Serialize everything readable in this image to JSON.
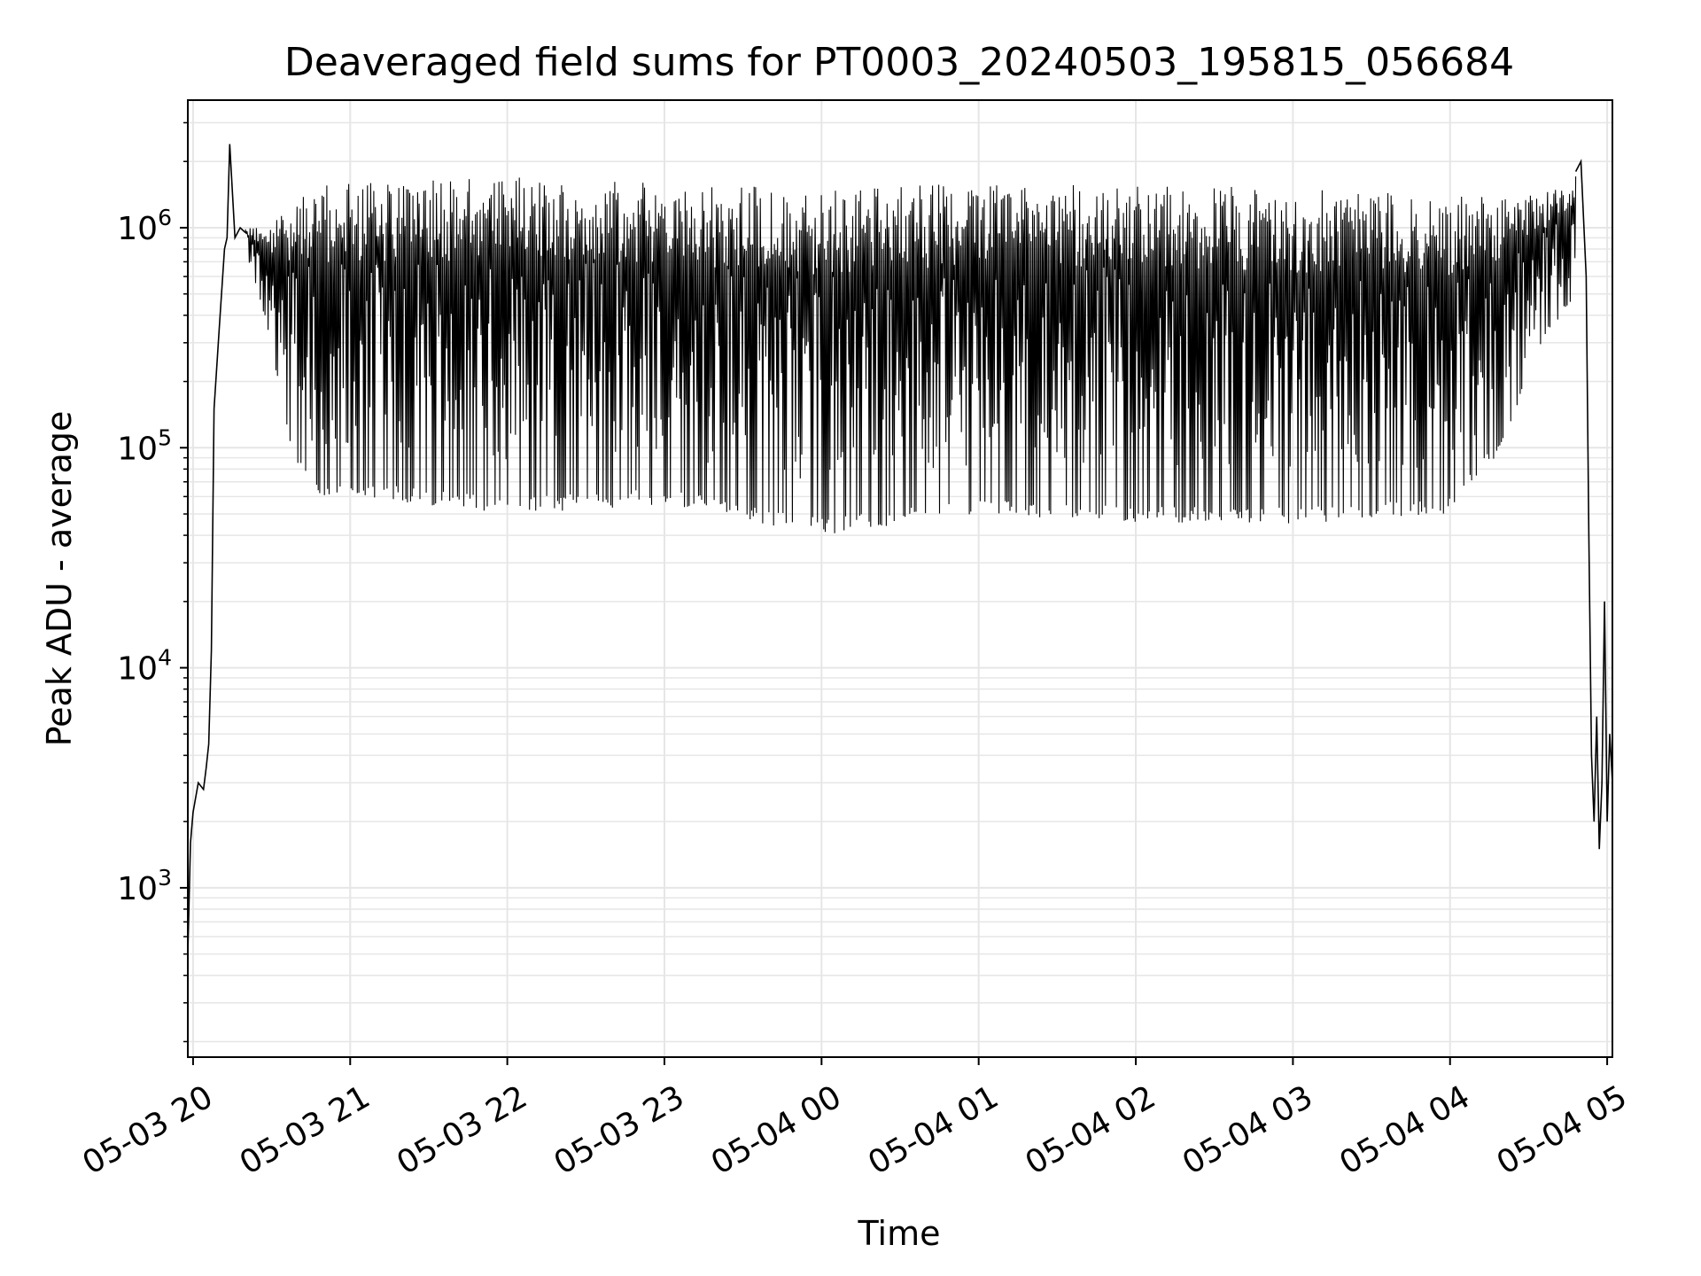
{
  "chart_data": {
    "type": "line",
    "title": "Deaveraged field sums for PT0003_20240503_195815_056684",
    "xlabel": "Time",
    "ylabel": "Peak ADU - average",
    "y_scale": "log",
    "grid": true,
    "grid_minor": true,
    "legend": "none",
    "line_color": "#000000",
    "grid_color": "#e6e6e6",
    "xlim": [
      "2024-05-03T19:58",
      "2024-05-04T05:02"
    ],
    "ylim": [
      170,
      3800000
    ],
    "x_ticks": [
      {
        "value": "2024-05-03T20:00",
        "label": "05-03 20"
      },
      {
        "value": "2024-05-03T21:00",
        "label": "05-03 21"
      },
      {
        "value": "2024-05-03T22:00",
        "label": "05-03 22"
      },
      {
        "value": "2024-05-03T23:00",
        "label": "05-03 23"
      },
      {
        "value": "2024-05-04T00:00",
        "label": "05-04 00"
      },
      {
        "value": "2024-05-04T01:00",
        "label": "05-04 01"
      },
      {
        "value": "2024-05-04T02:00",
        "label": "05-04 02"
      },
      {
        "value": "2024-05-04T03:00",
        "label": "05-04 03"
      },
      {
        "value": "2024-05-04T04:00",
        "label": "05-04 04"
      },
      {
        "value": "2024-05-04T05:00",
        "label": "05-04 05"
      }
    ],
    "y_ticks": [
      {
        "value": 1000,
        "base": "10",
        "exp": "3"
      },
      {
        "value": 10000,
        "base": "10",
        "exp": "4"
      },
      {
        "value": 100000,
        "base": "10",
        "exp": "5"
      },
      {
        "value": 1000000,
        "base": "10",
        "exp": "6"
      }
    ],
    "series": [
      {
        "x": [
          "2024-05-03T19:58",
          "2024-05-03T19:59",
          "2024-05-03T20:00",
          "2024-05-03T20:02",
          "2024-05-03T20:04",
          "2024-05-03T20:05",
          "2024-05-03T20:06",
          "2024-05-03T20:07",
          "2024-05-03T20:08",
          "2024-05-03T20:10",
          "2024-05-03T20:12",
          "2024-05-03T20:13",
          "2024-05-03T20:14",
          "2024-05-03T20:16",
          "2024-05-03T20:18",
          "2024-05-03T20:20"
        ],
        "y": [
          500,
          1600,
          2200,
          3000,
          2800,
          3500,
          4500,
          12000,
          150000,
          350000,
          800000,
          900000,
          2400000,
          900000,
          1000000,
          950000
        ]
      },
      {
        "x_range": [
          "2024-05-03T20:20",
          "2024-05-04T04:48"
        ],
        "upper_envelope": [
          {
            "x": "2024-05-03T20:20",
            "y": 1000000
          },
          {
            "x": "2024-05-03T20:30",
            "y": 1000000
          },
          {
            "x": "2024-05-03T20:40",
            "y": 1500000
          },
          {
            "x": "2024-05-03T21:00",
            "y": 1600000
          },
          {
            "x": "2024-05-03T22:00",
            "y": 1700000
          },
          {
            "x": "2024-05-03T23:00",
            "y": 1600000
          },
          {
            "x": "2024-05-04T00:00",
            "y": 1500000
          },
          {
            "x": "2024-05-04T01:00",
            "y": 1600000
          },
          {
            "x": "2024-05-04T02:00",
            "y": 1600000
          },
          {
            "x": "2024-05-04T03:00",
            "y": 1500000
          },
          {
            "x": "2024-05-04T04:00",
            "y": 1400000
          },
          {
            "x": "2024-05-04T04:35",
            "y": 1400000
          },
          {
            "x": "2024-05-04T04:48",
            "y": 1800000
          }
        ],
        "lower_envelope": [
          {
            "x": "2024-05-03T20:20",
            "y": 800000
          },
          {
            "x": "2024-05-03T20:30",
            "y": 300000
          },
          {
            "x": "2024-05-03T20:35",
            "y": 120000
          },
          {
            "x": "2024-05-03T20:45",
            "y": 60000
          },
          {
            "x": "2024-05-03T21:00",
            "y": 60000
          },
          {
            "x": "2024-05-03T22:00",
            "y": 50000
          },
          {
            "x": "2024-05-03T23:00",
            "y": 55000
          },
          {
            "x": "2024-05-04T00:00",
            "y": 40000
          },
          {
            "x": "2024-05-04T01:00",
            "y": 50000
          },
          {
            "x": "2024-05-04T02:00",
            "y": 45000
          },
          {
            "x": "2024-05-04T03:00",
            "y": 45000
          },
          {
            "x": "2024-05-04T04:00",
            "y": 50000
          },
          {
            "x": "2024-05-04T04:20",
            "y": 100000
          },
          {
            "x": "2024-05-04T04:35",
            "y": 300000
          },
          {
            "x": "2024-05-04T04:48",
            "y": 500000
          }
        ]
      },
      {
        "x": [
          "2024-05-04T04:48",
          "2024-05-04T04:50",
          "2024-05-04T04:52",
          "2024-05-04T04:53",
          "2024-05-04T04:54",
          "2024-05-04T04:55",
          "2024-05-04T04:56",
          "2024-05-04T04:57",
          "2024-05-04T04:58",
          "2024-05-04T04:59",
          "2024-05-04T05:00",
          "2024-05-04T05:01",
          "2024-05-04T05:02"
        ],
        "y": [
          1800000,
          2000000,
          600000,
          40000,
          4000,
          2000,
          6000,
          1500,
          3000,
          20000,
          2000,
          5000,
          3000
        ]
      }
    ]
  }
}
